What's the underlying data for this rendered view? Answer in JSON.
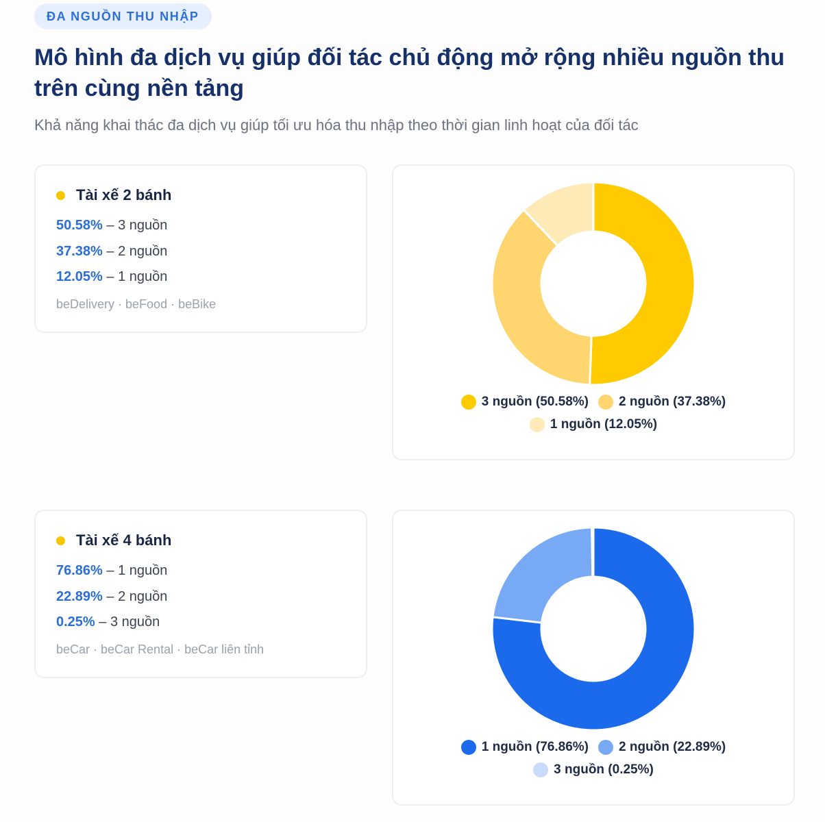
{
  "header": {
    "badge": "ĐA NGUỒN THU NHẬP",
    "title": "Mô hình đa dịch vụ giúp đối tác chủ động mở rộng nhiều nguồn thu trên cùng nền tảng",
    "subtitle": "Khả năng khai thác đa dịch vụ giúp tối ưu hóa thu nhập theo thời gian linh hoạt của đối tác"
  },
  "colors": {
    "accent_yellow": "#f7c600",
    "pct_blue": "#2b6fd6",
    "title_navy": "#16316a"
  },
  "sections": [
    {
      "title": "Tài xế 2 bánh",
      "stats": [
        {
          "pct": "50.58%",
          "label": " – 3 nguồn"
        },
        {
          "pct": "37.38%",
          "label": " – 2 nguồn"
        },
        {
          "pct": "12.05%",
          "label": " – 1 nguồn"
        }
      ],
      "services": "beDelivery · beFood · beBike",
      "legend": [
        "3 nguồn (50.58%)",
        "2 nguồn (37.38%)",
        "1 nguồn (12.05%)"
      ]
    },
    {
      "title": "Tài xế 4 bánh",
      "stats": [
        {
          "pct": "76.86%",
          "label": " – 1 nguồn"
        },
        {
          "pct": "22.89%",
          "label": " – 2 nguồn"
        },
        {
          "pct": "0.25%",
          "label": " – 3 nguồn"
        }
      ],
      "services": "beCar · beCar Rental · beCar liên tỉnh",
      "legend": [
        "1 nguồn (76.86%)",
        "2 nguồn (22.89%)",
        "3 nguồn (0.25%)"
      ]
    }
  ],
  "chart_data": [
    {
      "type": "pie",
      "categories": [
        "3 nguồn",
        "2 nguồn",
        "1 nguồn"
      ],
      "values": [
        50.58,
        37.38,
        12.05
      ],
      "colors": [
        "#fecb00",
        "#fed56f",
        "#feeab6"
      ],
      "legend_position": "bottom"
    },
    {
      "type": "pie",
      "categories": [
        "1 nguồn",
        "2 nguồn",
        "3 nguồn"
      ],
      "values": [
        76.86,
        22.89,
        0.25
      ],
      "colors": [
        "#1a6aeb",
        "#78a9f4",
        "#c9dbfb"
      ],
      "legend_position": "bottom"
    }
  ]
}
